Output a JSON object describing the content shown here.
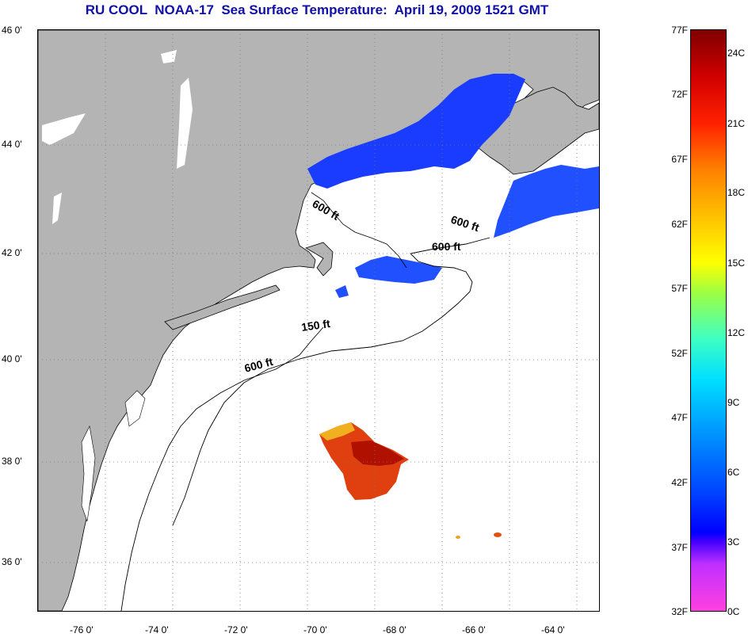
{
  "title": "RU COOL  NOAA-17  Sea Surface Temperature:  April 19, 2009 1521 GMT",
  "latitude_labels": [
    "46 0'",
    "44 0'",
    "42 0'",
    "40 0'",
    "38 0'",
    "36 0'"
  ],
  "longitude_labels": [
    "-76 0'",
    "-74 0'",
    "-72 0'",
    "-70 0'",
    "-68 0'",
    "-66 0'",
    "-64 0'"
  ],
  "contour_labels": [
    "600 ft",
    "600 ft",
    "600 ft",
    "150 ft",
    "600 ft"
  ],
  "colorbar": {
    "fahrenheit_labels": [
      "77F",
      "72F",
      "67F",
      "62F",
      "57F",
      "52F",
      "47F",
      "42F",
      "37F",
      "32F"
    ],
    "celsius_labels": [
      "24C",
      "21C",
      "18C",
      "15C",
      "12C",
      "9C",
      "6C",
      "3C",
      "0C"
    ]
  },
  "colors": {
    "land": "#b4b4b4",
    "no_data": "#ffffff",
    "title": "#1010a8",
    "cold_water": "#1a3cff",
    "warm_water": "#e04010"
  }
}
